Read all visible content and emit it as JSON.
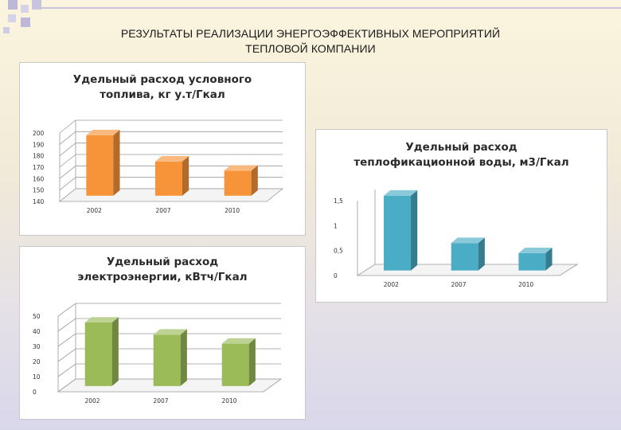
{
  "slide": {
    "title_line1": "РЕЗУЛЬТАТЫ РЕАЛИЗАЦИИ ЭНЕРГОЭФФЕКТИВНЫХ МЕРОПРИЯТИЙ",
    "title_line2": "ТЕПЛОВОЙ КОМПАНИИ"
  },
  "colors": {
    "fuel": "#f7943a",
    "water": "#4bacc6",
    "electricity": "#9bbb59"
  },
  "chart_data": [
    {
      "type": "bar",
      "title_line1": "Удельный расход условного",
      "title_line2": "топлива,  кг у.т/Гкал",
      "categories": [
        "2002",
        "2007",
        "2010"
      ],
      "values": [
        193,
        170,
        162
      ],
      "ylim": [
        140,
        200
      ],
      "yticks": [
        "140",
        "150",
        "160",
        "170",
        "180",
        "190",
        "200"
      ],
      "grid": true,
      "style": "3d"
    },
    {
      "type": "bar",
      "title_line1": "Удельный расход",
      "title_line2": "теплофикационной воды, м3/Гкал",
      "categories": [
        "2002",
        "2007",
        "2010"
      ],
      "values": [
        1.5,
        0.55,
        0.35
      ],
      "ylim": [
        0,
        1.5
      ],
      "yticks": [
        "0",
        "0,5",
        "1",
        "1,5"
      ],
      "grid": false,
      "style": "3d"
    },
    {
      "type": "bar",
      "title_line1": "Удельный расход",
      "title_line2": "электроэнергии, кВтч/Гкал",
      "categories": [
        "2002",
        "2007",
        "2010"
      ],
      "values": [
        42,
        34,
        28
      ],
      "ylim": [
        0,
        50
      ],
      "yticks": [
        "0",
        "10",
        "20",
        "30",
        "40",
        "50"
      ],
      "grid": true,
      "style": "3d"
    }
  ]
}
